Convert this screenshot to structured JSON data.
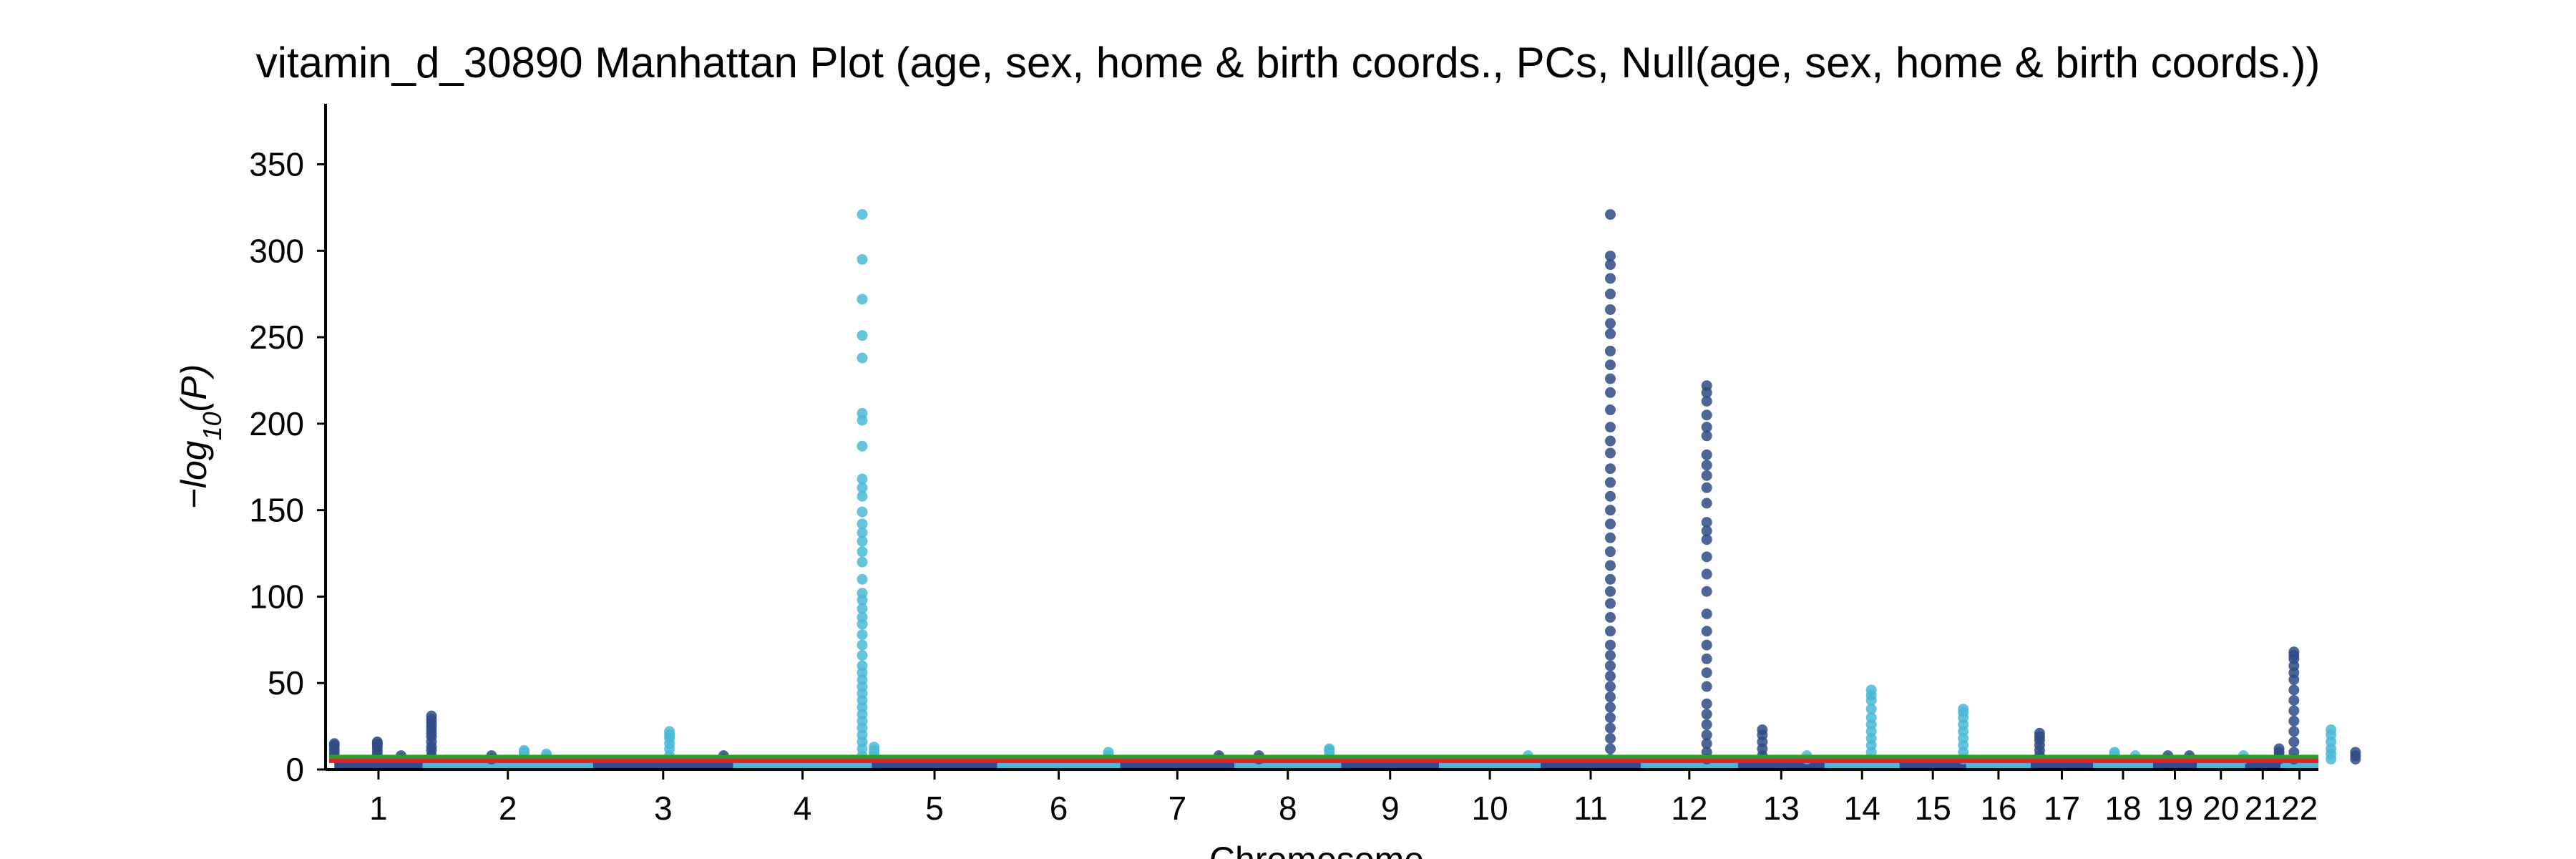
{
  "chart_data": {
    "type": "scatter",
    "title": "vitamin_d_30890 Manhattan Plot (age, sex, home & birth coords., PCs, Null(age, sex, home & birth coords.))",
    "xlabel": "Chromosome",
    "ylabel": "−log10(P)",
    "ylabel_base": "−log",
    "ylabel_sub": "10",
    "ylabel_tail": "(P)",
    "ylim": [
      0,
      385
    ],
    "yticks": [
      0,
      50,
      100,
      150,
      200,
      250,
      300,
      350
    ],
    "grid": false,
    "colors": {
      "dark": "#2f4b85",
      "light": "#4bb8d6",
      "threshold_green": "#2ca02c",
      "threshold_red": "#d62728",
      "axis": "#000000"
    },
    "thresholds": [
      7.3,
      5.0
    ],
    "chromosomes": [
      {
        "label": "1",
        "start": 0.0,
        "end": 119.0
      },
      {
        "label": "2",
        "start": 119.0,
        "end": 349.0
      },
      {
        "label": "3",
        "start": 349.0,
        "end": 538.0
      },
      {
        "label": "4",
        "start": 538.0,
        "end": 725.0
      },
      {
        "label": "5",
        "start": 725.0,
        "end": 894.0
      },
      {
        "label": "6",
        "start": 894.0,
        "end": 1060.0
      },
      {
        "label": "7",
        "start": 1060.0,
        "end": 1214.0
      },
      {
        "label": "8",
        "start": 1214.0,
        "end": 1358.0
      },
      {
        "label": "9",
        "start": 1358.0,
        "end": 1490.0
      },
      {
        "label": "10",
        "start": 1490.0,
        "end": 1627.0
      },
      {
        "label": "11",
        "start": 1627.0,
        "end": 1762.0
      },
      {
        "label": "12",
        "start": 1762.0,
        "end": 1893.0
      },
      {
        "label": "13",
        "start": 1893.0,
        "end": 2010.0
      },
      {
        "label": "14",
        "start": 2010.0,
        "end": 2111.0
      },
      {
        "label": "15",
        "start": 2111.0,
        "end": 2201.0
      },
      {
        "label": "16",
        "start": 2201.0,
        "end": 2288.0
      },
      {
        "label": "17",
        "start": 2288.0,
        "end": 2372.0
      },
      {
        "label": "18",
        "start": 2372.0,
        "end": 2453.0
      },
      {
        "label": "19",
        "start": 2453.0,
        "end": 2512.0
      },
      {
        "label": "20",
        "start": 2512.0,
        "end": 2577.0
      },
      {
        "label": "21",
        "start": 2577.0,
        "end": 2625.0
      },
      {
        "label": "22",
        "start": 2625.0,
        "end": 2676.0
      }
    ],
    "x_range": [
      -7,
      2676
    ],
    "peaks": [
      {
        "x": 0.0,
        "c": "dark",
        "y": [
          8,
          10,
          12,
          14,
          15
        ]
      },
      {
        "x": 58.0,
        "c": "dark",
        "y": [
          6,
          9,
          11,
          13,
          14,
          15,
          16
        ]
      },
      {
        "x": 90.0,
        "c": "dark",
        "y": [
          6,
          8
        ]
      },
      {
        "x": 131.0,
        "c": "dark",
        "y": [
          8,
          11,
          13,
          16,
          19,
          21,
          23,
          25,
          27,
          29,
          31
        ]
      },
      {
        "x": 212.0,
        "c": "dark",
        "y": [
          6,
          8
        ]
      },
      {
        "x": 256.0,
        "c": "light",
        "y": [
          7,
          9,
          10,
          11
        ]
      },
      {
        "x": 286.0,
        "c": "light",
        "y": [
          6,
          8,
          9
        ]
      },
      {
        "x": 452.0,
        "c": "light",
        "y": [
          8,
          12,
          15,
          18,
          20,
          22
        ]
      },
      {
        "x": 525.0,
        "c": "dark",
        "y": [
          6,
          8
        ]
      },
      {
        "x": 712.0,
        "c": "light",
        "y": [
          8,
          12,
          16,
          20,
          24,
          28,
          32,
          36,
          40,
          44,
          48,
          52,
          56,
          60,
          66,
          72,
          78,
          84,
          88,
          93,
          98,
          102,
          110,
          120,
          126,
          132,
          137,
          142,
          149,
          158,
          163,
          168,
          187,
          202,
          206,
          238,
          251,
          272,
          295,
          321
        ]
      },
      {
        "x": 728.0,
        "c": "light",
        "y": [
          7,
          9,
          11,
          13
        ]
      },
      {
        "x": 1044.0,
        "c": "light",
        "y": [
          6,
          8,
          10
        ]
      },
      {
        "x": 1193.0,
        "c": "dark",
        "y": [
          6,
          8
        ]
      },
      {
        "x": 1247.0,
        "c": "dark",
        "y": [
          6,
          8
        ]
      },
      {
        "x": 1342.0,
        "c": "light",
        "y": [
          7,
          9,
          11,
          12
        ]
      },
      {
        "x": 1610.0,
        "c": "light",
        "y": [
          6,
          8
        ]
      },
      {
        "x": 1721.0,
        "c": "dark",
        "y": [
          6,
          12,
          18,
          24,
          30,
          36,
          42,
          48,
          54,
          60,
          66,
          72,
          80,
          88,
          96,
          103,
          110,
          118,
          126,
          134,
          142,
          150,
          158,
          166,
          174,
          183,
          190,
          198,
          208,
          218,
          226,
          234,
          242,
          252,
          258,
          266,
          275,
          284,
          292,
          297,
          321
        ]
      },
      {
        "x": 1851.0,
        "c": "dark",
        "y": [
          6,
          10,
          15,
          20,
          26,
          32,
          38,
          48,
          56,
          64,
          72,
          80,
          90,
          103,
          113,
          123,
          133,
          138,
          143,
          154,
          163,
          170,
          176,
          182,
          193,
          198,
          205,
          213,
          218,
          222
        ]
      },
      {
        "x": 1926.0,
        "c": "dark",
        "y": [
          6,
          8,
          12,
          16,
          20,
          23
        ]
      },
      {
        "x": 1986.0,
        "c": "light",
        "y": [
          6,
          8
        ]
      },
      {
        "x": 2073.0,
        "c": "light",
        "y": [
          6,
          10,
          14,
          18,
          22,
          26,
          30,
          35,
          40,
          43,
          46
        ]
      },
      {
        "x": 2197.0,
        "c": "light",
        "y": [
          6,
          10,
          14,
          18,
          22,
          26,
          30,
          33,
          35
        ]
      },
      {
        "x": 2300.0,
        "c": "dark",
        "y": [
          6,
          8,
          11,
          14,
          17,
          19,
          21
        ]
      },
      {
        "x": 2401.0,
        "c": "light",
        "y": [
          7,
          9,
          10
        ]
      },
      {
        "x": 2429.0,
        "c": "light",
        "y": [
          6,
          8
        ]
      },
      {
        "x": 2473.0,
        "c": "dark",
        "y": [
          6,
          8
        ]
      },
      {
        "x": 2502.0,
        "c": "dark",
        "y": [
          6,
          8
        ]
      },
      {
        "x": 2575.0,
        "c": "light",
        "y": [
          6,
          8
        ]
      },
      {
        "x": 2623.0,
        "c": "dark",
        "y": [
          6,
          8,
          10,
          12
        ]
      },
      {
        "x": 2643.0,
        "c": "dark",
        "y": [
          6,
          10,
          16,
          22,
          28,
          34,
          40,
          46,
          52,
          56,
          60,
          64,
          66,
          68
        ]
      },
      {
        "x": 2693.0,
        "c": "light",
        "y": [
          6,
          9,
          12,
          16,
          20,
          23
        ]
      },
      {
        "x": 2726.0,
        "c": "dark",
        "y": [
          6,
          8,
          10
        ]
      }
    ]
  }
}
